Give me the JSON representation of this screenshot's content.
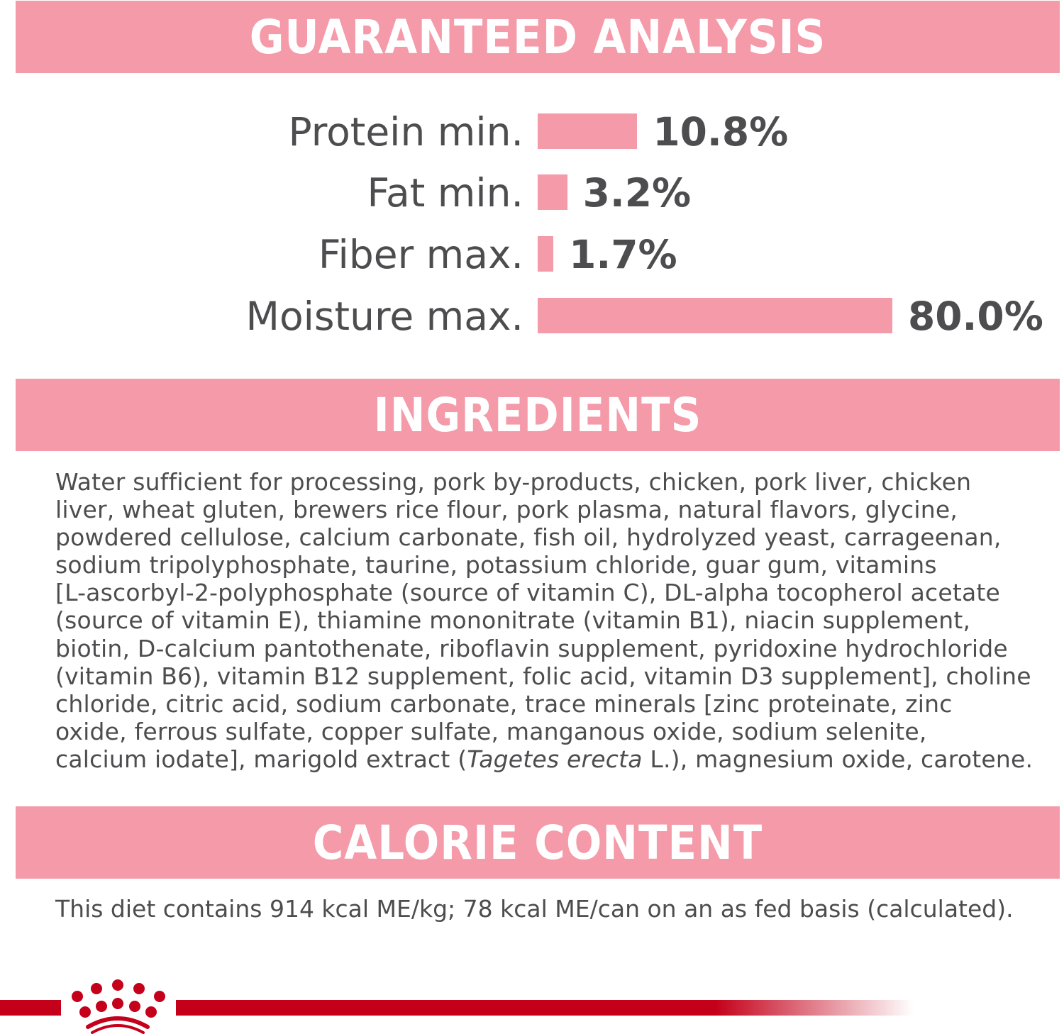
{
  "guaranteed_analysis": {
    "title": "GUARANTEED ANALYSIS",
    "items": [
      {
        "label": "Protein min.",
        "value": "10.8%",
        "percent": 10.8
      },
      {
        "label": "Fat min.",
        "value": "3.2%",
        "percent": 3.2
      },
      {
        "label": "Fiber max.",
        "value": "1.7%",
        "percent": 1.7
      },
      {
        "label": "Moisture max.",
        "value": "80.0%",
        "percent": 80.0
      }
    ]
  },
  "ingredients": {
    "title": "INGREDIENTS",
    "lines": [
      "Water sufficient for processing, pork by-products, chicken, pork liver, chicken",
      "liver, wheat gluten, brewers rice flour, pork plasma, natural flavors, glycine,",
      "powdered cellulose, calcium carbonate, fish oil, hydrolyzed yeast, carrageenan,",
      "sodium tripolyphosphate, taurine, potassium chloride, guar gum, vitamins",
      "[L-ascorbyl-2-polyphosphate (source of vitamin C), DL-alpha tocopherol acetate",
      "(source of vitamin E), thiamine mononitrate (vitamin B1), niacin supplement,",
      "biotin, D-calcium pantothenate, riboflavin supplement, pyridoxine hydrochloride",
      "(vitamin B6), vitamin B12 supplement, folic acid, vitamin D3 supplement], choline",
      "chloride, citric acid, sodium carbonate, trace minerals [zinc proteinate, zinc",
      "oxide, ferrous sulfate, copper sulfate, manganous oxide, sodium selenite,"
    ],
    "last_line_start": "calcium iodate], marigold extract (",
    "last_line_italic": "Tagetes erecta",
    "last_line_end": " L.), magnesium oxide, carotene."
  },
  "calorie_content": {
    "title": "CALORIE CONTENT",
    "text": "This diet contains 914 kcal ME/kg; 78 kcal ME/can on an as fed basis (calculated)."
  },
  "colors": {
    "accent": "#f49aa8",
    "brand_red": "#c4001a",
    "text": "#4d4d4f"
  },
  "logo": {
    "icon": "royal-canin-crown-icon"
  }
}
